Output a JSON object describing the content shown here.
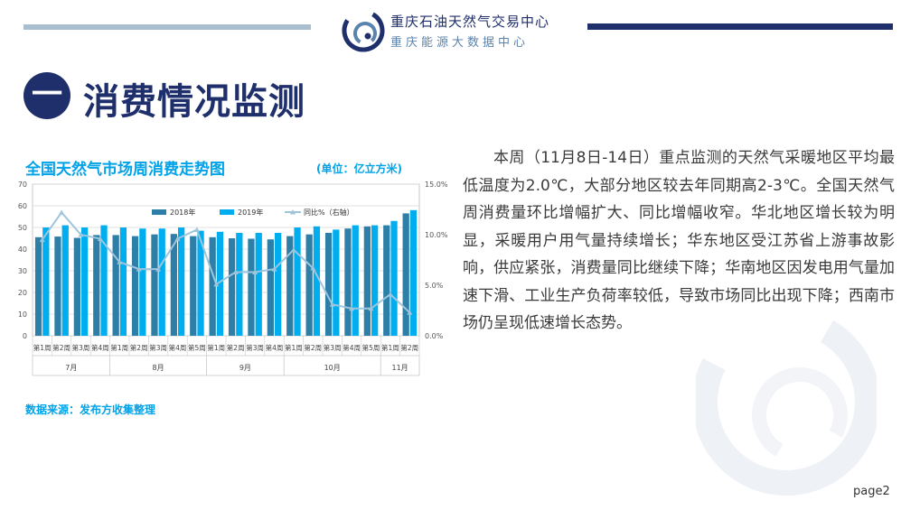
{
  "header": {
    "org_name": "重庆石油天然气交易中心",
    "org_sub": "重庆能源大数据中心"
  },
  "section": {
    "number": "一",
    "title": "消费情况监测"
  },
  "chart_title": "全国天然气市场周消费走势图",
  "chart_unit": "(单位：亿立方米)",
  "source_text": "数据来源：发布方收集整理",
  "body_text": "本周（11月8日-14日）重点监测的天然气采暖地区平均最低温度为2.0℃，大部分地区较去年同期高2-3℃。全国天然气周消费量环比增幅扩大、同比增幅收窄。华北地区增长较为明显，采暖用户用气量持续增长；华东地区受江苏省上游事故影响，供应紧张，消费量同比继续下降；华南地区因发电用气量加速下滑、工业生产负荷率较低，导致市场同比出现下降；西南市场仍呈现低速增长态势。",
  "page_label": "page2",
  "colors": {
    "navy": "#1f2f6b",
    "accent": "#00a2e8",
    "series2018": "#2e7fa8",
    "series2019": "#00aef0",
    "yoy_line": "#9ec5dc"
  },
  "chart_data": {
    "type": "bar",
    "categories": [
      "第1周",
      "第2周",
      "第3周",
      "第4周",
      "第1周",
      "第2周",
      "第3周",
      "第4周",
      "第5周",
      "第1周",
      "第2周",
      "第3周",
      "第4周",
      "第1周",
      "第2周",
      "第3周",
      "第4周",
      "第5周",
      "第1周",
      "第2周"
    ],
    "groups": [
      {
        "label": "7月",
        "count": 4
      },
      {
        "label": "8月",
        "count": 5
      },
      {
        "label": "9月",
        "count": 4
      },
      {
        "label": "10月",
        "count": 5
      },
      {
        "label": "11月",
        "count": 2
      }
    ],
    "series": [
      {
        "name": "2018年",
        "axis": "left",
        "values": [
          45.5,
          45.8,
          45.2,
          46.5,
          46.5,
          46.0,
          46.8,
          47.0,
          46.0,
          45.5,
          45.0,
          44.8,
          44.5,
          46.0,
          46.8,
          47.5,
          49.5,
          50.5,
          51.0,
          56.5
        ]
      },
      {
        "name": "2019年",
        "axis": "left",
        "values": [
          50.0,
          51.0,
          50.0,
          51.0,
          50.0,
          49.5,
          49.5,
          50.0,
          48.5,
          48.0,
          47.5,
          47.5,
          47.5,
          50.0,
          50.5,
          49.0,
          51.0,
          51.0,
          53.0,
          58.0
        ]
      },
      {
        "name": "同比%（右轴）",
        "type": "line",
        "axis": "right",
        "values": [
          9.5,
          12.2,
          10.0,
          9.6,
          7.3,
          6.6,
          6.6,
          9.6,
          10.5,
          5.1,
          6.3,
          6.3,
          6.6,
          8.5,
          6.7,
          3.1,
          2.7,
          2.7,
          4.1,
          2.3
        ]
      }
    ],
    "yticks_left": [
      "0",
      "10",
      "20",
      "30",
      "40",
      "50",
      "60",
      "70"
    ],
    "ylim_left": [
      0,
      70
    ],
    "yticks_right": [
      "0.0%",
      "5.0%",
      "10.0%",
      "15.0%"
    ],
    "ylim_right": [
      0,
      15
    ],
    "grid": true,
    "legend_position": "top"
  }
}
